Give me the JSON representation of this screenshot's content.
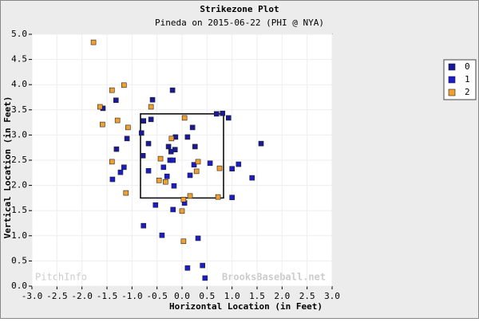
{
  "chart_data": {
    "type": "scatter",
    "title": "Strikezone Plot",
    "subtitle": "Pineda on 2015-06-22 (PHI @ NYA)",
    "x_label": "Horizontal Location (in Feet)",
    "y_label": "Vertical Location (in Feet)",
    "watermarks": [
      "PitchInfo",
      "BrooksBaseball.net"
    ],
    "xlim": [
      -3,
      3
    ],
    "ylim": [
      0,
      5
    ],
    "xticks": [
      {
        "value": -3,
        "label": "-3.0"
      },
      {
        "value": -2.5,
        "label": "-2.5"
      },
      {
        "value": -2,
        "label": "-2.0"
      },
      {
        "value": -1.5,
        "label": "-1.5"
      },
      {
        "value": -1,
        "label": "-1.0"
      },
      {
        "value": -0.5,
        "label": "-0.5"
      },
      {
        "value": 0,
        "label": "0.0"
      },
      {
        "value": 0.5,
        "label": "0.5"
      },
      {
        "value": 1,
        "label": "1.0"
      },
      {
        "value": 1.5,
        "label": "1.5"
      },
      {
        "value": 2,
        "label": "2.0"
      },
      {
        "value": 2.5,
        "label": "2.5"
      },
      {
        "value": 3,
        "label": "3.0"
      }
    ],
    "yticks": [
      {
        "value": 0,
        "label": "0.0"
      },
      {
        "value": 0.5,
        "label": "0.5"
      },
      {
        "value": 1,
        "label": "1.0"
      },
      {
        "value": 1.5,
        "label": "1.5"
      },
      {
        "value": 2,
        "label": "2.0"
      },
      {
        "value": 2.5,
        "label": "2.5"
      },
      {
        "value": 3,
        "label": "3.0"
      },
      {
        "value": 3.5,
        "label": "3.5"
      },
      {
        "value": 4,
        "label": "4.0"
      },
      {
        "value": 4.5,
        "label": "4.5"
      },
      {
        "value": 5,
        "label": "5.0"
      }
    ],
    "strike_zone": {
      "x": [
        -0.83,
        0.83
      ],
      "y": [
        1.75,
        3.42
      ]
    },
    "grid": true,
    "legend": "right",
    "series": [
      {
        "name": "0",
        "color": "#1a1a99",
        "x": [
          -0.19,
          -1.32,
          -1.58,
          -0.59,
          0.69,
          0.81,
          0.93,
          -0.77,
          -0.62,
          0.21,
          -0.81,
          -1.1,
          -0.13,
          0.11,
          -0.67,
          1.58,
          -0.27,
          0.26,
          -0.14,
          -1.31,
          -0.22,
          -0.78
        ],
        "values": [
          3.89,
          3.69,
          3.53,
          3.7,
          3.42,
          3.43,
          3.34,
          3.28,
          3.31,
          3.15,
          3.04,
          2.93,
          2.96,
          2.96,
          2.83,
          2.83,
          2.77,
          2.77,
          2.71,
          2.72,
          2.67,
          2.59
        ]
      },
      {
        "name": "1",
        "color": "#1c1cc8",
        "x": [
          -0.24,
          -0.18,
          0.56,
          0.24,
          1.13,
          -1.16,
          -0.37,
          -1.23,
          -0.67,
          1.0,
          -0.3,
          0.16,
          1.4,
          -1.39,
          -0.16,
          1.0,
          -0.53,
          0.05,
          -0.18,
          -0.77,
          -0.4,
          0.32,
          0.41,
          0.11,
          0.46
        ],
        "values": [
          2.5,
          2.5,
          2.44,
          2.41,
          2.42,
          2.36,
          2.36,
          2.26,
          2.29,
          2.33,
          2.18,
          2.2,
          2.15,
          2.12,
          1.99,
          1.76,
          1.61,
          1.65,
          1.52,
          1.2,
          1.01,
          0.95,
          0.41,
          0.36,
          0.16
        ]
      },
      {
        "name": "2",
        "color": "#f0a030",
        "x": [
          -1.77,
          -1.16,
          -1.4,
          -1.64,
          -0.62,
          -1.29,
          0.05,
          -1.59,
          -1.08,
          -0.21,
          -1.4,
          -0.43,
          0.32,
          0.75,
          0.29,
          -0.46,
          -0.33,
          -1.12,
          0.16,
          0.72,
          0.03,
          0.0,
          0.03
        ],
        "values": [
          4.84,
          3.99,
          3.89,
          3.56,
          3.56,
          3.29,
          3.34,
          3.21,
          3.15,
          2.93,
          2.47,
          2.53,
          2.47,
          2.34,
          2.28,
          2.1,
          2.07,
          1.85,
          1.79,
          1.77,
          1.72,
          1.49,
          0.89
        ]
      }
    ]
  }
}
